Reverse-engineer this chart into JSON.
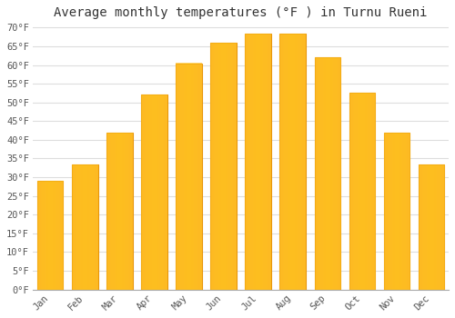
{
  "title": "Average monthly temperatures (°F ) in Turnu Rueni",
  "months": [
    "Jan",
    "Feb",
    "Mar",
    "Apr",
    "May",
    "Jun",
    "Jul",
    "Aug",
    "Sep",
    "Oct",
    "Nov",
    "Dec"
  ],
  "values": [
    29,
    33.5,
    42,
    52,
    60.5,
    66,
    68.5,
    68.5,
    62,
    52.5,
    42,
    33.5
  ],
  "bar_color_face": "#FDB827",
  "bar_color_edge": "#E8960A",
  "bar_width": 0.75,
  "ylim": [
    0,
    71
  ],
  "yticks": [
    0,
    5,
    10,
    15,
    20,
    25,
    30,
    35,
    40,
    45,
    50,
    55,
    60,
    65,
    70
  ],
  "ytick_labels": [
    "0°F",
    "5°F",
    "10°F",
    "15°F",
    "20°F",
    "25°F",
    "30°F",
    "35°F",
    "40°F",
    "45°F",
    "50°F",
    "55°F",
    "60°F",
    "65°F",
    "70°F"
  ],
  "background_color": "#FFFFFF",
  "plot_bg_color": "#FFFFFF",
  "grid_color": "#DDDDDD",
  "title_fontsize": 10,
  "tick_fontsize": 7.5,
  "font_family": "monospace",
  "tick_color": "#555555"
}
